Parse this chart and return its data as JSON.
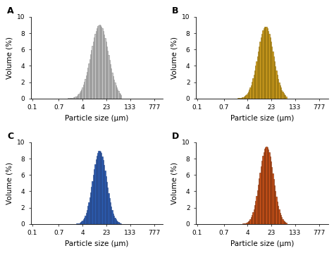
{
  "panels": [
    "A",
    "B",
    "C",
    "D"
  ],
  "colors": [
    "#c8c8c8",
    "#d4a020",
    "#2b5db5",
    "#d4561a"
  ],
  "edge_colors": [
    "#888888",
    "#8a6800",
    "#1a3d80",
    "#7a2800"
  ],
  "xlabel": "Particle size (μm)",
  "ylabel": "Volume (%)",
  "ylim": [
    0,
    10
  ],
  "yticks": [
    0,
    2,
    4,
    6,
    8,
    10
  ],
  "xtick_labels": [
    "0.1",
    "0.7",
    "4",
    "23",
    "133",
    "777"
  ],
  "xtick_values": [
    0.1,
    0.7,
    4,
    23,
    133,
    777
  ],
  "xmin": 0.09,
  "xmax": 1500,
  "panels_params": [
    {
      "peak_um": 14.0,
      "sigma": 0.28,
      "max_val": 9.0,
      "skew": 0.0
    },
    {
      "peak_um": 15.0,
      "sigma": 0.25,
      "max_val": 8.8,
      "skew": 0.0
    },
    {
      "peak_um": 14.0,
      "sigma": 0.22,
      "max_val": 9.0,
      "skew": 0.0
    },
    {
      "peak_um": 16.0,
      "sigma": 0.22,
      "max_val": 9.5,
      "skew": 0.0
    }
  ],
  "n_bars": 70,
  "log_xmin": -0.155,
  "log_xmax": 1.85,
  "linewidth": 0.4,
  "label_fontsize": 9,
  "tick_fontsize": 6.5,
  "axis_label_fontsize": 7.5
}
